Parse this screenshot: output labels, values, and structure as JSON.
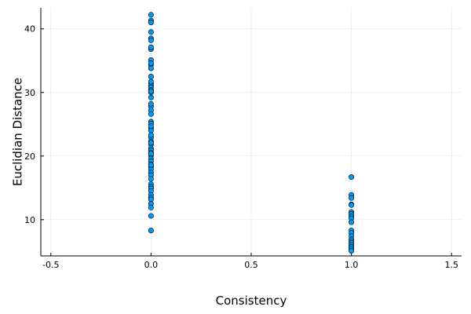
{
  "chart_data": {
    "type": "scatter",
    "title": "",
    "xlabel": "Consistency",
    "ylabel": "Euclidian Distance",
    "xlim": [
      -0.55,
      1.55
    ],
    "ylim": [
      4.3,
      43.3
    ],
    "xticks": [
      -0.5,
      0.0,
      0.5,
      1.0,
      1.5
    ],
    "xtick_labels": [
      "-0.5",
      "0.0",
      "0.5",
      "1.0",
      "1.5"
    ],
    "yticks": [
      10,
      20,
      30,
      40
    ],
    "ytick_labels": [
      "10",
      "20",
      "30",
      "40"
    ],
    "grid": true,
    "legend": false,
    "marker_color": "#009AFA",
    "marker_edge_color": "#000000",
    "series": [
      {
        "x": [
          0,
          0,
          0,
          0,
          0,
          0,
          0,
          0,
          0,
          0,
          0,
          0,
          0,
          0,
          0,
          0,
          0,
          0,
          0,
          0,
          0,
          0,
          0,
          0,
          0,
          0,
          0,
          0,
          0,
          0,
          0,
          0,
          0,
          0,
          0,
          0,
          0,
          0,
          0,
          0,
          0,
          0,
          0,
          0,
          0,
          0,
          0,
          0,
          0,
          0,
          0,
          0,
          0,
          0,
          0,
          0,
          0,
          0,
          0,
          0,
          1,
          1,
          1,
          1,
          1,
          1,
          1,
          1,
          1,
          1,
          1,
          1,
          1,
          1,
          1,
          1,
          1,
          1,
          1,
          1
        ],
        "y": [
          42.2,
          41.3,
          41.0,
          39.5,
          38.5,
          38.2,
          36.8,
          35.1,
          34.3,
          33.8,
          32.5,
          31.4,
          31.1,
          30.8,
          30.4,
          30.0,
          29.2,
          27.8,
          27.2,
          26.6,
          25.4,
          25.1,
          24.4,
          24.0,
          22.9,
          22.3,
          21.8,
          21.2,
          20.9,
          20.5,
          20.1,
          19.6,
          19.2,
          18.7,
          18.3,
          17.9,
          17.4,
          17.0,
          16.4,
          15.6,
          15.2,
          14.9,
          14.5,
          13.9,
          13.5,
          13.2,
          12.5,
          11.9,
          10.6,
          8.3,
          18.6,
          20.4,
          22.1,
          23.3,
          24.7,
          28.2,
          30.2,
          31.7,
          34.6,
          37.1,
          16.7,
          13.9,
          13.4,
          12.4,
          12.3,
          11.2,
          10.9,
          10.5,
          10.2,
          9.6,
          8.3,
          7.9,
          7.4,
          6.9,
          6.6,
          6.3,
          6.0,
          5.7,
          5.4,
          5.1
        ]
      }
    ]
  }
}
